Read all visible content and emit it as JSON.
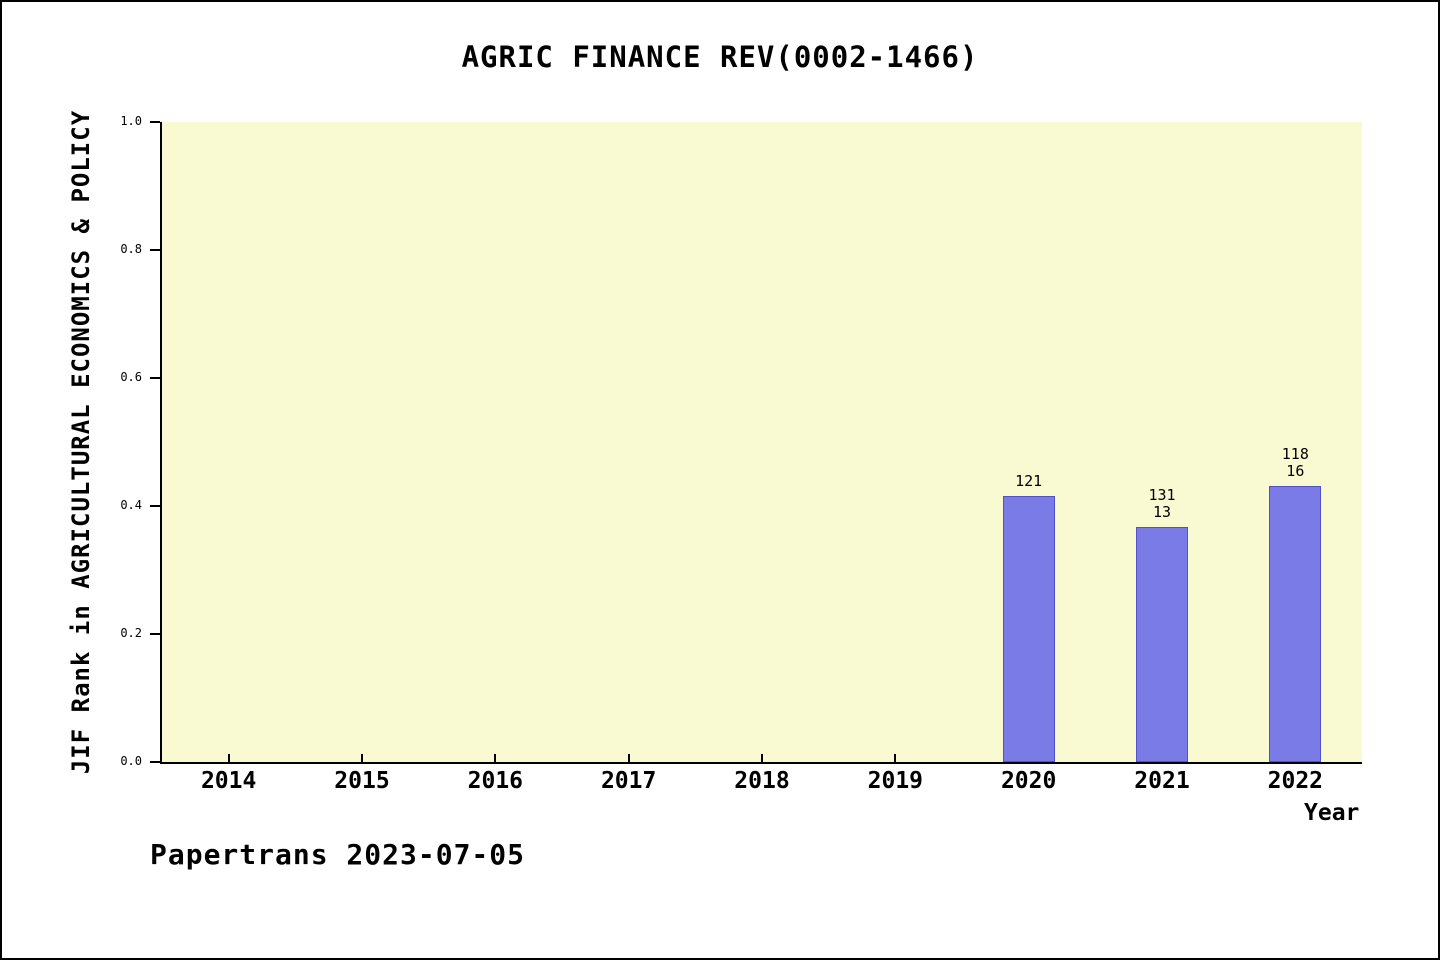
{
  "title": "AGRIC FINANCE REV(0002-1466)",
  "footer": "Papertrans 2023-07-05",
  "chart_data": {
    "type": "bar",
    "title": "AGRIC FINANCE REV(0002-1466)",
    "xlabel": "Year",
    "ylabel": "JIF Rank in AGRICULTURAL ECONOMICS & POLICY",
    "categories": [
      "2014",
      "2015",
      "2016",
      "2017",
      "2018",
      "2019",
      "2020",
      "2021",
      "2022"
    ],
    "values": [
      null,
      null,
      null,
      null,
      null,
      null,
      0.415,
      0.367,
      0.431
    ],
    "bar_labels": [
      [],
      [],
      [],
      [],
      [],
      [],
      [
        "121"
      ],
      [
        "131",
        "13"
      ],
      [
        "118",
        "16"
      ]
    ],
    "yticks": [
      "0.0",
      "0.2",
      "0.4",
      "0.6",
      "0.8",
      "1.0"
    ],
    "ylim": [
      0,
      1
    ],
    "grid": false,
    "legend": "none",
    "colors": {
      "bar_fill": "#7b7be8",
      "bar_edge": "#5151c8",
      "plot_bg": "#fafad2",
      "axis": "#000000",
      "page_bg": "#ffffff"
    },
    "annotation_note": "2020 rank 121; 2021 ranks 131 and 13; 2022 ranks 118 and 16"
  }
}
